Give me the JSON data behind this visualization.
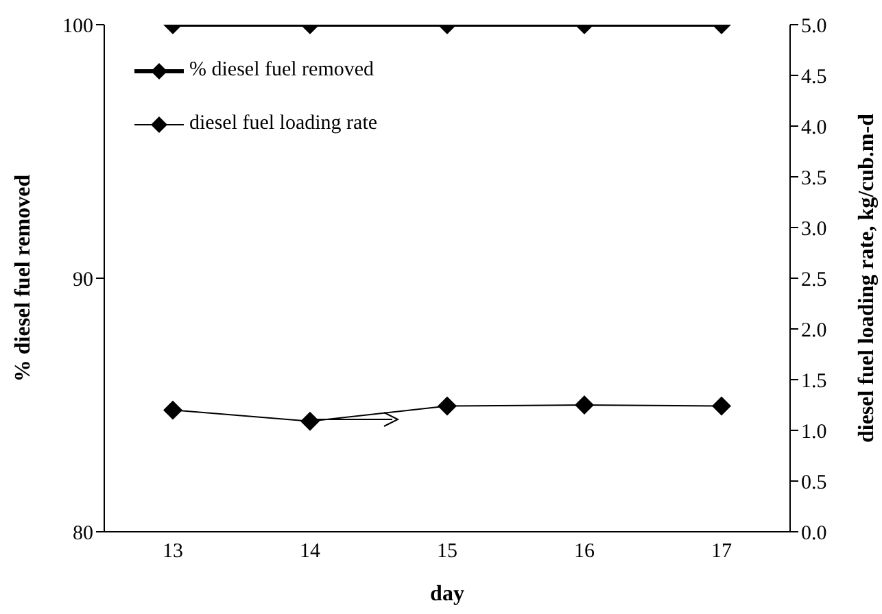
{
  "chart_data": {
    "type": "line",
    "xlabel": "day",
    "ylabel": "% diesel fuel removed",
    "y2label": "diesel fuel loading rate, kg/cub.m-d",
    "categories": [
      "13",
      "14",
      "15",
      "16",
      "17"
    ],
    "series": [
      {
        "name": "% diesel fuel removed",
        "color": "#000000",
        "values": [
          100,
          100,
          100,
          100,
          100
        ]
      },
      {
        "name": "diesel fuel loading rate",
        "color": "#000000",
        "values": [
          1.2,
          1.09,
          1.24,
          1.25,
          1.24
        ],
        "axis": "y2"
      }
    ],
    "ylim": [
      80,
      100
    ],
    "yticks": [
      80,
      90,
      100
    ],
    "y2lim": [
      0,
      5
    ],
    "y2ticks": [
      {
        "value": 0,
        "label": "0.0"
      },
      {
        "value": 0.5,
        "label": "0.5"
      },
      {
        "value": 1,
        "label": "1.0"
      },
      {
        "value": 1.5,
        "label": "1.5"
      },
      {
        "value": 2,
        "label": "2.0"
      },
      {
        "value": 2.5,
        "label": "2.5"
      },
      {
        "value": 3,
        "label": "3.0"
      },
      {
        "value": 3.5,
        "label": "3.5"
      },
      {
        "value": 4,
        "label": "4.0"
      },
      {
        "value": 4.5,
        "label": "4.5"
      },
      {
        "value": 5,
        "label": "5.0"
      }
    ],
    "marker": "diamond",
    "legend": "top left",
    "grid": false
  }
}
